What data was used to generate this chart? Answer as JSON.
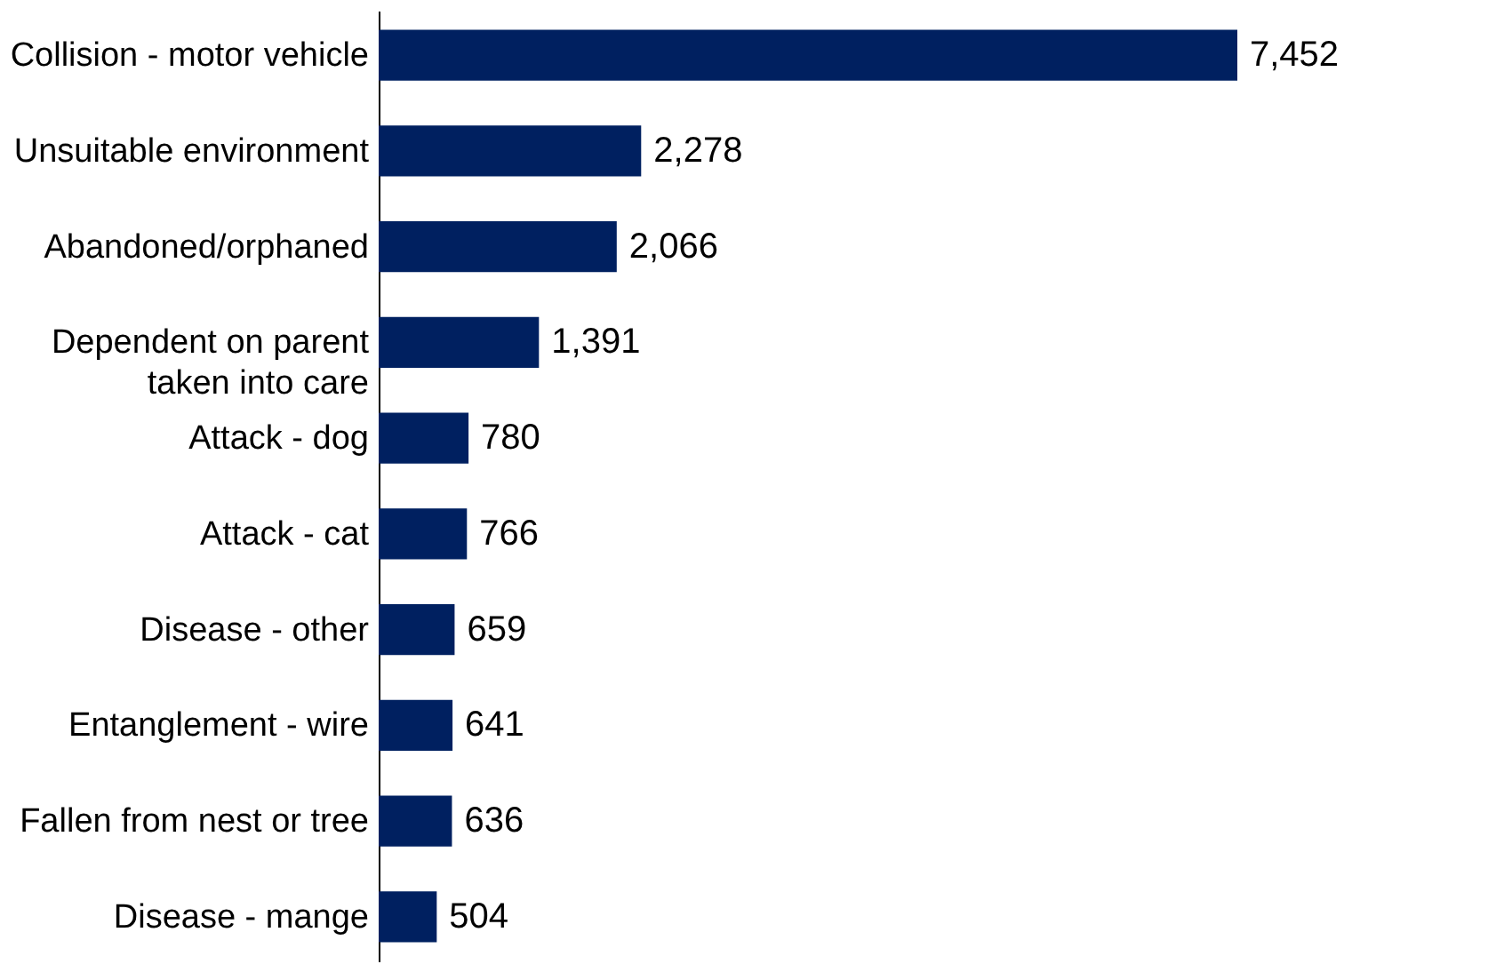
{
  "chart_data": {
    "type": "bar",
    "orientation": "horizontal",
    "categories": [
      "Collision - motor vehicle",
      "Unsuitable environment",
      "Abandoned/orphaned",
      "Dependent on parent\ntaken into care",
      "Attack - dog",
      "Attack - cat",
      "Disease - other",
      "Entanglement - wire",
      "Fallen from nest or tree",
      "Disease - mange"
    ],
    "values": [
      7452,
      2278,
      2066,
      1391,
      780,
      766,
      659,
      641,
      636,
      504
    ],
    "value_labels": [
      "7,452",
      "2,278",
      "2,066",
      "1,391",
      "780",
      "766",
      "659",
      "641",
      "636",
      "504"
    ],
    "color": "#002060",
    "tick_labels": "y"
  }
}
